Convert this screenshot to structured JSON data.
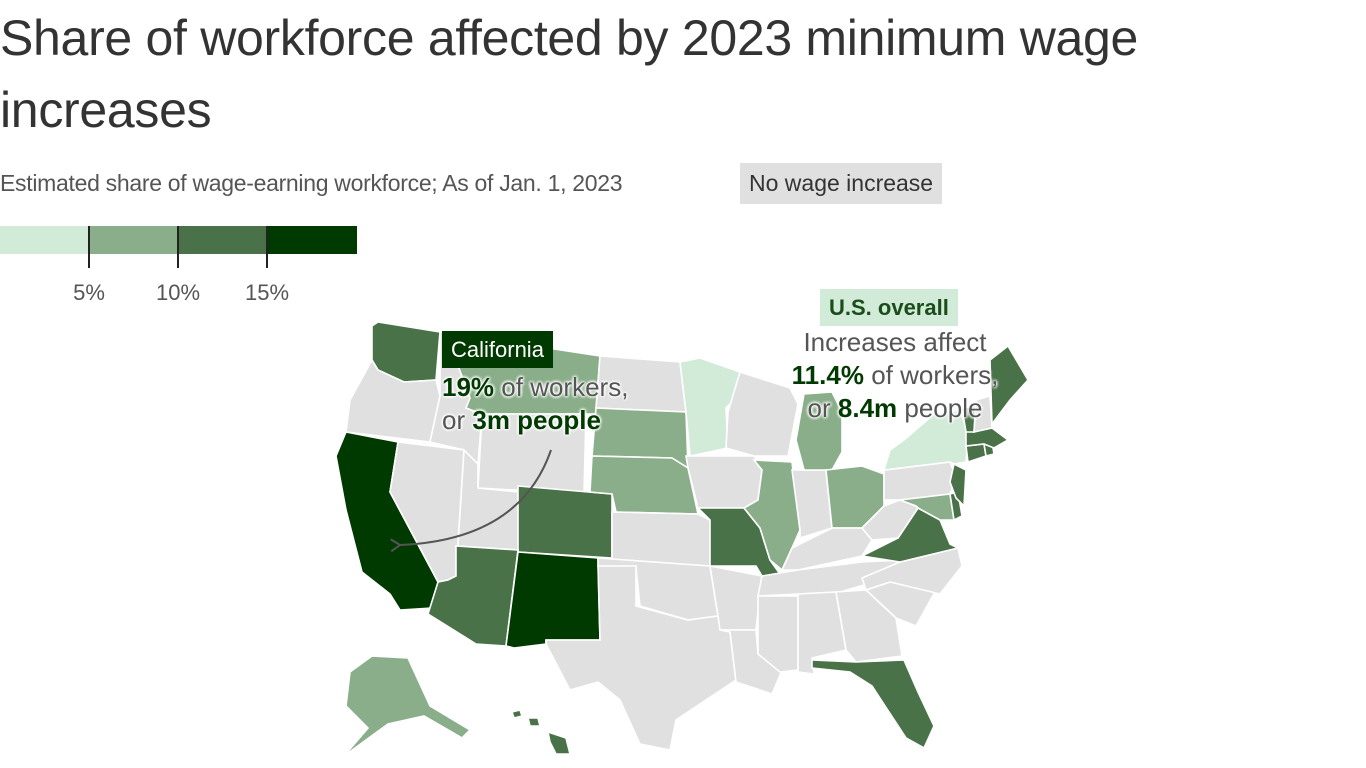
{
  "title": "Share of workforce affected by 2023 minimum wage increases",
  "subtitle": "Estimated share of wage-earning workforce; As of Jan. 1, 2023",
  "no_increase_label": "No wage increase",
  "legend": {
    "ticks": [
      "5%",
      "10%",
      "15%"
    ],
    "colors": [
      "#d2ead8",
      "#8aae8a",
      "#4a7248",
      "#003a00"
    ],
    "no_increase_color": "#e0e0e0"
  },
  "callouts": {
    "california": {
      "label": "California",
      "value": "19%",
      "text1": "of workers,",
      "prefix2": "or",
      "people": "3m people"
    },
    "us": {
      "label": "U.S. overall",
      "line1": "Increases affect",
      "value": "11.4%",
      "text2": "of workers,",
      "prefix3": "or",
      "people": "8.4m",
      "suffix3": "people"
    }
  },
  "states": [
    {
      "name": "California",
      "bucket": 4
    },
    {
      "name": "New Mexico",
      "bucket": 4
    },
    {
      "name": "Washington",
      "bucket": 3
    },
    {
      "name": "Arizona",
      "bucket": 3
    },
    {
      "name": "Colorado",
      "bucket": 3
    },
    {
      "name": "Missouri",
      "bucket": 3
    },
    {
      "name": "Florida",
      "bucket": 3
    },
    {
      "name": "Virginia",
      "bucket": 3
    },
    {
      "name": "Maine",
      "bucket": 3
    },
    {
      "name": "Massachusetts",
      "bucket": 3
    },
    {
      "name": "Vermont",
      "bucket": 3
    },
    {
      "name": "New Jersey",
      "bucket": 3
    },
    {
      "name": "Delaware",
      "bucket": 3
    },
    {
      "name": "Rhode Island",
      "bucket": 3
    },
    {
      "name": "Connecticut",
      "bucket": 3
    },
    {
      "name": "Hawaii",
      "bucket": 3
    },
    {
      "name": "South Dakota",
      "bucket": 2
    },
    {
      "name": "Nebraska",
      "bucket": 2
    },
    {
      "name": "Illinois",
      "bucket": 2
    },
    {
      "name": "Michigan",
      "bucket": 2
    },
    {
      "name": "Ohio",
      "bucket": 2
    },
    {
      "name": "Maryland",
      "bucket": 2
    },
    {
      "name": "Alaska",
      "bucket": 2
    },
    {
      "name": "Montana",
      "bucket": 2
    },
    {
      "name": "Minnesota",
      "bucket": 1
    },
    {
      "name": "New York",
      "bucket": 1
    },
    {
      "name": "Oregon",
      "bucket": 0
    },
    {
      "name": "Idaho",
      "bucket": 0
    },
    {
      "name": "Nevada",
      "bucket": 0
    },
    {
      "name": "Utah",
      "bucket": 0
    },
    {
      "name": "Wyoming",
      "bucket": 0
    },
    {
      "name": "North Dakota",
      "bucket": 0
    },
    {
      "name": "Kansas",
      "bucket": 0
    },
    {
      "name": "Oklahoma",
      "bucket": 0
    },
    {
      "name": "Texas",
      "bucket": 0
    },
    {
      "name": "Iowa",
      "bucket": 0
    },
    {
      "name": "Wisconsin",
      "bucket": 0
    },
    {
      "name": "Arkansas",
      "bucket": 0
    },
    {
      "name": "Louisiana",
      "bucket": 0
    },
    {
      "name": "Indiana",
      "bucket": 0
    },
    {
      "name": "Kentucky",
      "bucket": 0
    },
    {
      "name": "Tennessee",
      "bucket": 0
    },
    {
      "name": "Mississippi",
      "bucket": 0
    },
    {
      "name": "Alabama",
      "bucket": 0
    },
    {
      "name": "Georgia",
      "bucket": 0
    },
    {
      "name": "South Carolina",
      "bucket": 0
    },
    {
      "name": "North Carolina",
      "bucket": 0
    },
    {
      "name": "West Virginia",
      "bucket": 0
    },
    {
      "name": "Pennsylvania",
      "bucket": 0
    },
    {
      "name": "New Hampshire",
      "bucket": 0
    }
  ]
}
